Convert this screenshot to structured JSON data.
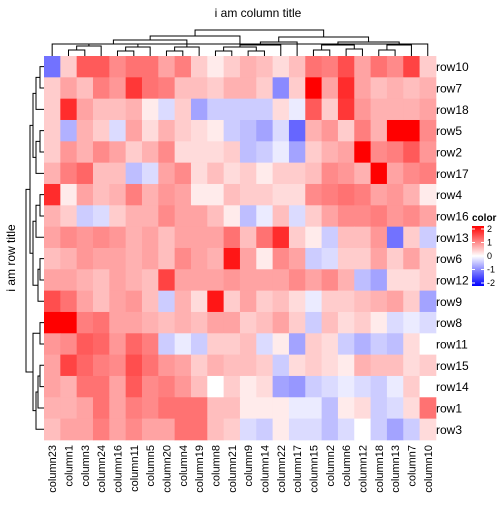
{
  "chart_data": {
    "type": "heatmap",
    "title": "i am column title",
    "ylabel": "i am row title",
    "columns": [
      "column23",
      "column1",
      "column3",
      "column24",
      "column16",
      "column11",
      "column5",
      "column20",
      "column4",
      "column19",
      "column8",
      "column21",
      "column9",
      "column14",
      "column22",
      "column17",
      "column15",
      "column2",
      "column6",
      "column12",
      "column18",
      "column13",
      "column7",
      "column10"
    ],
    "rows": [
      "row10",
      "row7",
      "row18",
      "row5",
      "row2",
      "row17",
      "row4",
      "row16",
      "row13",
      "row6",
      "row12",
      "row9",
      "row8",
      "row11",
      "row15",
      "row14",
      "row1",
      "row3"
    ],
    "values": [
      [
        -1.0,
        0.3,
        1.2,
        1.2,
        0.8,
        1.0,
        1.0,
        0.6,
        0.9,
        0.3,
        0.1,
        0.3,
        0.5,
        0.4,
        0.2,
        0.4,
        1.0,
        0.9,
        1.3,
        0.6,
        1.0,
        0.8,
        1.4,
        0.3
      ],
      [
        0.3,
        0.6,
        0.4,
        0.9,
        0.7,
        1.5,
        1.0,
        0.9,
        0.4,
        0.4,
        0.3,
        0.5,
        0.5,
        0.3,
        -0.8,
        0.3,
        2.0,
        0.6,
        1.6,
        0.6,
        0.4,
        0.5,
        0.4,
        0.5
      ],
      [
        0.3,
        1.6,
        0.6,
        0.4,
        0.4,
        0.5,
        0.1,
        -0.2,
        0.3,
        -0.6,
        -0.3,
        -0.3,
        -0.3,
        -0.3,
        0.2,
        -0.1,
        1.2,
        0.3,
        1.5,
        0.7,
        0.5,
        0.5,
        0.5,
        0.6
      ],
      [
        0.3,
        -0.5,
        0.5,
        0.3,
        -0.2,
        0.6,
        0.2,
        0.5,
        0.3,
        0.2,
        0.1,
        -0.3,
        -0.4,
        -0.6,
        -0.2,
        -1.1,
        0.5,
        0.7,
        0.3,
        0.9,
        0.5,
        2.1,
        2.2,
        0.8
      ],
      [
        0.3,
        0.7,
        0.5,
        0.8,
        0.6,
        0.3,
        0.5,
        0.8,
        0.2,
        0.2,
        0.2,
        0.3,
        -0.4,
        -0.3,
        -0.1,
        -0.6,
        0.3,
        0.5,
        0.6,
        2.2,
        0.8,
        0.9,
        1.2,
        0.7
      ],
      [
        0.5,
        0.9,
        1.1,
        0.4,
        0.4,
        -0.4,
        -0.2,
        0.6,
        0.8,
        0.2,
        0.4,
        0.2,
        0.3,
        0.1,
        0.3,
        0.3,
        0.4,
        0.8,
        0.7,
        0.5,
        2.2,
        0.6,
        0.8,
        0.9
      ],
      [
        1.6,
        0.1,
        0.6,
        0.4,
        0.5,
        0.9,
        0.5,
        0.7,
        0.6,
        0.1,
        0.1,
        0.4,
        0.3,
        0.3,
        0.2,
        0.2,
        0.8,
        0.9,
        1.0,
        0.9,
        0.6,
        0.7,
        0.5,
        0.1
      ],
      [
        0.5,
        0.3,
        -0.3,
        -0.2,
        0.3,
        0.5,
        0.5,
        0.8,
        0.6,
        0.6,
        0.4,
        0.1,
        -0.4,
        -0.1,
        0.4,
        -0.2,
        0.3,
        0.6,
        0.8,
        0.8,
        0.9,
        0.7,
        0.8,
        0.6
      ],
      [
        0.6,
        0.8,
        0.7,
        0.8,
        0.7,
        0.5,
        0.6,
        0.4,
        0.6,
        0.6,
        0.6,
        1.0,
        0.4,
        1.0,
        1.6,
        0.3,
        0.1,
        -0.3,
        0.4,
        0.4,
        0.7,
        -1.0,
        0.3,
        -0.3
      ],
      [
        0.4,
        0.5,
        0.7,
        0.6,
        0.6,
        0.5,
        0.6,
        0.4,
        0.8,
        0.6,
        0.5,
        1.8,
        0.6,
        0.1,
        0.8,
        0.6,
        -0.3,
        -0.2,
        0.3,
        0.3,
        0.6,
        0.3,
        0.6,
        0.3
      ],
      [
        0.6,
        0.6,
        0.5,
        0.4,
        0.6,
        0.5,
        0.4,
        1.4,
        0.6,
        0.6,
        0.6,
        0.7,
        0.6,
        0.6,
        0.6,
        0.8,
        0.6,
        0.8,
        0.5,
        -0.4,
        -0.6,
        0.2,
        0.2,
        0.3
      ],
      [
        1.3,
        1.0,
        0.6,
        0.4,
        0.6,
        0.7,
        0.4,
        -0.3,
        0.5,
        0.2,
        1.8,
        0.3,
        0.6,
        0.3,
        0.4,
        0.2,
        -0.1,
        0.3,
        0.3,
        0.4,
        0.5,
        0.6,
        0.3,
        -0.6
      ],
      [
        2.0,
        2.3,
        0.9,
        1.0,
        0.6,
        0.6,
        0.5,
        0.4,
        0.5,
        0.4,
        0.6,
        0.6,
        0.3,
        0.4,
        0.6,
        0.3,
        -0.3,
        0.4,
        0.2,
        0.3,
        0.1,
        -0.2,
        -0.1,
        -0.2
      ],
      [
        0.7,
        0.8,
        1.2,
        1.1,
        0.7,
        1.1,
        0.9,
        -0.3,
        -0.1,
        -0.3,
        0.3,
        0.3,
        0.4,
        -0.2,
        0.1,
        -0.6,
        0.3,
        0.2,
        -0.3,
        -0.5,
        -0.3,
        -0.4,
        0.2,
        0.0
      ],
      [
        0.6,
        1.4,
        1.1,
        0.9,
        0.8,
        1.3,
        1.0,
        0.7,
        0.6,
        0.3,
        0.5,
        0.4,
        0.4,
        0.3,
        -0.3,
        0.2,
        0.3,
        0.2,
        0.1,
        0.5,
        0.4,
        0.4,
        0.2,
        0.3
      ],
      [
        0.6,
        0.5,
        1.0,
        1.0,
        0.6,
        1.2,
        0.8,
        0.9,
        0.7,
        0.4,
        0.0,
        0.3,
        0.1,
        0.2,
        -0.6,
        -0.7,
        -0.3,
        -0.2,
        -0.1,
        -0.2,
        -0.3,
        -0.1,
        0.3,
        0.0
      ],
      [
        0.5,
        0.5,
        0.6,
        1.0,
        0.6,
        0.9,
        0.8,
        1.0,
        1.0,
        1.0,
        0.4,
        0.4,
        0.1,
        0.1,
        0.1,
        -0.1,
        -0.1,
        -0.4,
        0.1,
        0.2,
        -0.3,
        -0.2,
        0.2,
        1.0
      ],
      [
        0.4,
        0.6,
        0.6,
        0.9,
        0.6,
        0.8,
        0.6,
        0.6,
        1.0,
        1.0,
        0.4,
        0.3,
        -0.2,
        -0.3,
        0.1,
        -0.2,
        -0.2,
        -0.4,
        -0.2,
        0.0,
        -0.3,
        -0.6,
        -0.3,
        0.2
      ]
    ],
    "legend": {
      "title": "color",
      "ticks": [
        "2",
        "1",
        "0",
        "-1",
        "-2"
      ],
      "colors": {
        "low": "#0000ff",
        "mid": "#ffffff",
        "high": "#ff0000"
      },
      "position": "right"
    }
  }
}
